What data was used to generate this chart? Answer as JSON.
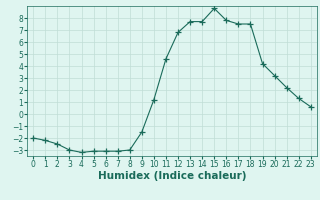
{
  "x": [
    0,
    1,
    2,
    3,
    4,
    5,
    6,
    7,
    8,
    9,
    10,
    11,
    12,
    13,
    14,
    15,
    16,
    17,
    18,
    19,
    20,
    21,
    22,
    23
  ],
  "y": [
    -2,
    -2.2,
    -2.5,
    -3,
    -3.2,
    -3.1,
    -3.1,
    -3.1,
    -3,
    -1.5,
    1.2,
    4.6,
    6.8,
    7.7,
    7.7,
    8.8,
    7.8,
    7.5,
    7.5,
    4.2,
    3.2,
    2.2,
    1.3,
    0.6
  ],
  "line_color": "#1a6b5a",
  "marker": "+",
  "marker_size": 4,
  "bg_color": "#dff5f0",
  "grid_color": "#c0ddd6",
  "xlabel": "Humidex (Indice chaleur)",
  "xlim": [
    -0.5,
    23.5
  ],
  "ylim": [
    -3.5,
    9.0
  ],
  "yticks": [
    -3,
    -2,
    -1,
    0,
    1,
    2,
    3,
    4,
    5,
    6,
    7,
    8
  ],
  "xticks": [
    0,
    1,
    2,
    3,
    4,
    5,
    6,
    7,
    8,
    9,
    10,
    11,
    12,
    13,
    14,
    15,
    16,
    17,
    18,
    19,
    20,
    21,
    22,
    23
  ],
  "tick_label_fontsize": 5.5,
  "xlabel_fontsize": 7.5
}
